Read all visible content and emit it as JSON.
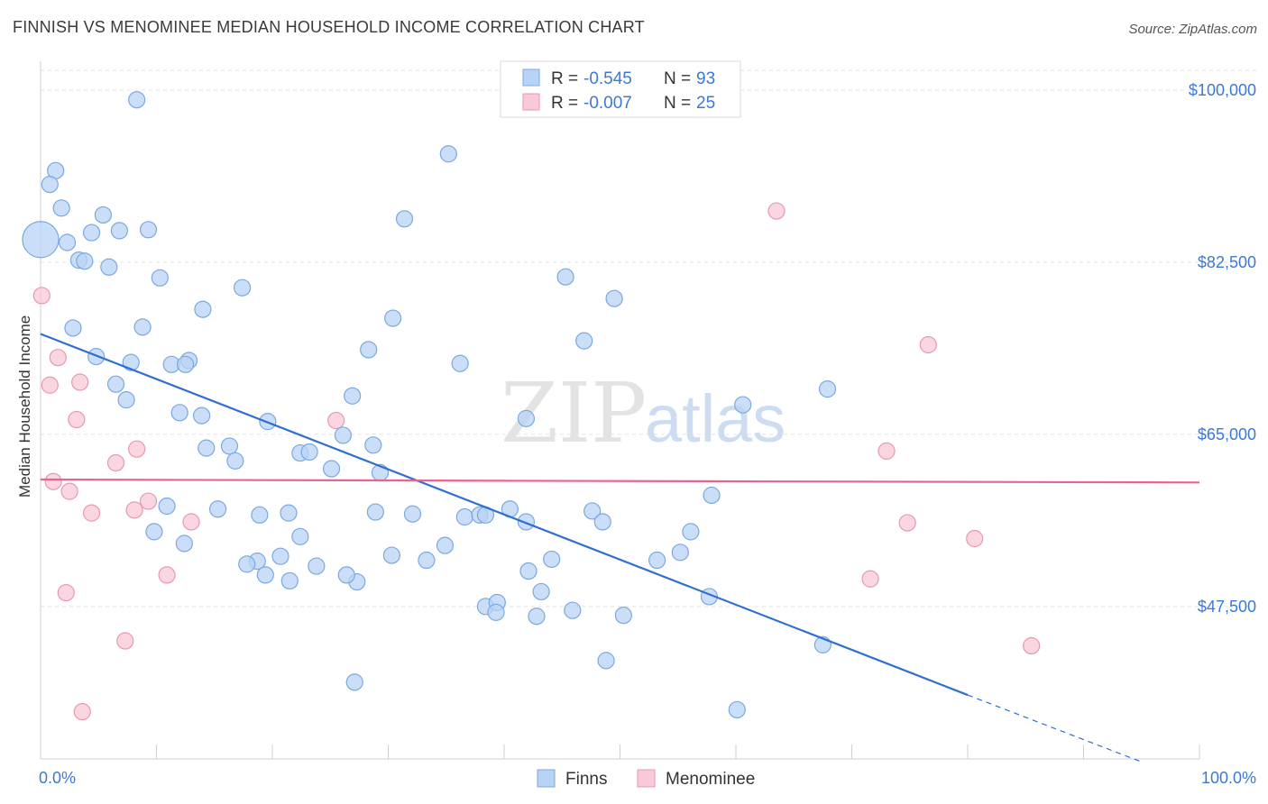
{
  "title": "FINNISH VS MENOMINEE MEDIAN HOUSEHOLD INCOME CORRELATION CHART",
  "source": "Source: ZipAtlas.com",
  "watermark": {
    "zip": "ZIP",
    "atlas": "atlas"
  },
  "legend_top": {
    "rows": [
      {
        "r_label": "R =",
        "r_value": "-0.545",
        "n_label": "N =",
        "n_value": "93",
        "color": "#b9d3f5"
      },
      {
        "r_label": "R =",
        "r_value": "-0.007",
        "n_label": "N =",
        "n_value": "25",
        "color": "#f8c9d6"
      }
    ]
  },
  "legend_bottom": [
    {
      "label": "Finns",
      "color": "#b9d3f5"
    },
    {
      "label": "Menominee",
      "color": "#f8c9d6"
    }
  ],
  "colors": {
    "finns_fill": "#b9d3f5",
    "finns_stroke": "#7aa8e0",
    "finns_line": "#2f6fd0",
    "menominee_fill": "#f8c9d6",
    "menominee_stroke": "#e897b0",
    "menominee_line": "#e8648f",
    "axis_text": "#3d78d6"
  },
  "chart_data": {
    "type": "scatter",
    "title": "FINNISH VS MENOMINEE MEDIAN HOUSEHOLD INCOME CORRELATION CHART",
    "xlabel": "",
    "ylabel": "Median Household Income",
    "xlim": [
      0,
      100
    ],
    "ylim": [
      32000,
      102000
    ],
    "x_tick_labels": [
      "0.0%",
      "100.0%"
    ],
    "y_ticks": [
      47500,
      65000,
      82500,
      100000
    ],
    "y_tick_labels": [
      "$47,500",
      "$65,000",
      "$82,500",
      "$100,000"
    ],
    "grid": true,
    "legend_position": "top-center",
    "series": [
      {
        "name": "Finns",
        "trend": {
          "x": [
            0,
            80,
            95
          ],
          "y": [
            75200,
            38500,
            31700
          ],
          "dashed_from_x": 80
        },
        "points": [
          {
            "x": 8.3,
            "y": 99000
          },
          {
            "x": 1.3,
            "y": 91800
          },
          {
            "x": 0.8,
            "y": 90400
          },
          {
            "x": 1.8,
            "y": 88000
          },
          {
            "x": 5.4,
            "y": 87300
          },
          {
            "x": 4.4,
            "y": 85500
          },
          {
            "x": 6.8,
            "y": 85700
          },
          {
            "x": 9.3,
            "y": 85800
          },
          {
            "x": 2.3,
            "y": 84500
          },
          {
            "x": 3.3,
            "y": 82700
          },
          {
            "x": 3.8,
            "y": 82600
          },
          {
            "x": 5.9,
            "y": 82000
          },
          {
            "x": 10.3,
            "y": 80900
          },
          {
            "x": 14.0,
            "y": 77700
          },
          {
            "x": 17.4,
            "y": 79900
          },
          {
            "x": 2.8,
            "y": 75800
          },
          {
            "x": 8.8,
            "y": 75900
          },
          {
            "x": 4.8,
            "y": 72900
          },
          {
            "x": 7.8,
            "y": 72300
          },
          {
            "x": 11.3,
            "y": 72100
          },
          {
            "x": 12.8,
            "y": 72500
          },
          {
            "x": 12.5,
            "y": 72100
          },
          {
            "x": 6.5,
            "y": 70100
          },
          {
            "x": 7.4,
            "y": 68500
          },
          {
            "x": 12.0,
            "y": 67200
          },
          {
            "x": 13.9,
            "y": 66900
          },
          {
            "x": 19.6,
            "y": 66300
          },
          {
            "x": 14.3,
            "y": 63600
          },
          {
            "x": 16.3,
            "y": 63800
          },
          {
            "x": 16.8,
            "y": 62300
          },
          {
            "x": 22.4,
            "y": 63100
          },
          {
            "x": 23.2,
            "y": 63200
          },
          {
            "x": 25.1,
            "y": 61500
          },
          {
            "x": 26.1,
            "y": 64900
          },
          {
            "x": 28.7,
            "y": 63900
          },
          {
            "x": 28.3,
            "y": 73600
          },
          {
            "x": 26.9,
            "y": 68900
          },
          {
            "x": 29.3,
            "y": 61100
          },
          {
            "x": 10.9,
            "y": 57700
          },
          {
            "x": 9.8,
            "y": 55100
          },
          {
            "x": 12.4,
            "y": 53900
          },
          {
            "x": 15.3,
            "y": 57400
          },
          {
            "x": 18.9,
            "y": 56800
          },
          {
            "x": 21.4,
            "y": 57000
          },
          {
            "x": 22.4,
            "y": 54600
          },
          {
            "x": 28.9,
            "y": 57100
          },
          {
            "x": 30.4,
            "y": 76800
          },
          {
            "x": 31.4,
            "y": 86900
          },
          {
            "x": 33.3,
            "y": 52200
          },
          {
            "x": 32.1,
            "y": 56900
          },
          {
            "x": 34.9,
            "y": 53700
          },
          {
            "x": 35.2,
            "y": 93500
          },
          {
            "x": 36.2,
            "y": 72200
          },
          {
            "x": 36.6,
            "y": 56600
          },
          {
            "x": 37.9,
            "y": 56800
          },
          {
            "x": 38.4,
            "y": 47500
          },
          {
            "x": 39.4,
            "y": 47900
          },
          {
            "x": 39.3,
            "y": 46900
          },
          {
            "x": 40.5,
            "y": 57400
          },
          {
            "x": 38.4,
            "y": 56800
          },
          {
            "x": 41.9,
            "y": 56100
          },
          {
            "x": 41.9,
            "y": 66600
          },
          {
            "x": 42.1,
            "y": 51100
          },
          {
            "x": 42.8,
            "y": 46500
          },
          {
            "x": 43.2,
            "y": 49000
          },
          {
            "x": 44.1,
            "y": 52300
          },
          {
            "x": 27.3,
            "y": 50000
          },
          {
            "x": 23.8,
            "y": 51600
          },
          {
            "x": 18.7,
            "y": 52100
          },
          {
            "x": 20.7,
            "y": 52600
          },
          {
            "x": 17.8,
            "y": 51800
          },
          {
            "x": 19.4,
            "y": 50700
          },
          {
            "x": 21.5,
            "y": 50100
          },
          {
            "x": 30.3,
            "y": 52700
          },
          {
            "x": 26.4,
            "y": 50700
          },
          {
            "x": 45.3,
            "y": 81000
          },
          {
            "x": 45.9,
            "y": 47100
          },
          {
            "x": 46.9,
            "y": 74500
          },
          {
            "x": 47.6,
            "y": 57200
          },
          {
            "x": 48.5,
            "y": 56100
          },
          {
            "x": 48.8,
            "y": 42000
          },
          {
            "x": 49.5,
            "y": 78800
          },
          {
            "x": 50.3,
            "y": 46600
          },
          {
            "x": 53.2,
            "y": 52200
          },
          {
            "x": 55.2,
            "y": 53000
          },
          {
            "x": 56.1,
            "y": 55100
          },
          {
            "x": 57.7,
            "y": 48500
          },
          {
            "x": 57.9,
            "y": 58800
          },
          {
            "x": 60.1,
            "y": 37000
          },
          {
            "x": 60.6,
            "y": 68000
          },
          {
            "x": 67.5,
            "y": 43600
          },
          {
            "x": 67.9,
            "y": 69600
          },
          {
            "x": 27.1,
            "y": 39800
          }
        ]
      },
      {
        "name": "Menominee",
        "trend": {
          "x": [
            0,
            100
          ],
          "y": [
            60400,
            60100
          ]
        },
        "points": [
          {
            "x": 0.1,
            "y": 79100
          },
          {
            "x": 0.8,
            "y": 70000
          },
          {
            "x": 1.5,
            "y": 72800
          },
          {
            "x": 3.4,
            "y": 70300
          },
          {
            "x": 3.1,
            "y": 66500
          },
          {
            "x": 1.1,
            "y": 60200
          },
          {
            "x": 2.5,
            "y": 59200
          },
          {
            "x": 4.4,
            "y": 57000
          },
          {
            "x": 6.5,
            "y": 62100
          },
          {
            "x": 8.3,
            "y": 63500
          },
          {
            "x": 8.1,
            "y": 57300
          },
          {
            "x": 9.3,
            "y": 58200
          },
          {
            "x": 13.0,
            "y": 56100
          },
          {
            "x": 10.9,
            "y": 50700
          },
          {
            "x": 2.2,
            "y": 48900
          },
          {
            "x": 7.3,
            "y": 44000
          },
          {
            "x": 3.6,
            "y": 36800
          },
          {
            "x": 25.5,
            "y": 66400
          },
          {
            "x": 63.5,
            "y": 87700
          },
          {
            "x": 76.6,
            "y": 74100
          },
          {
            "x": 73.0,
            "y": 63300
          },
          {
            "x": 74.8,
            "y": 56000
          },
          {
            "x": 71.6,
            "y": 50300
          },
          {
            "x": 80.6,
            "y": 54400
          },
          {
            "x": 85.5,
            "y": 43500
          }
        ]
      }
    ]
  }
}
